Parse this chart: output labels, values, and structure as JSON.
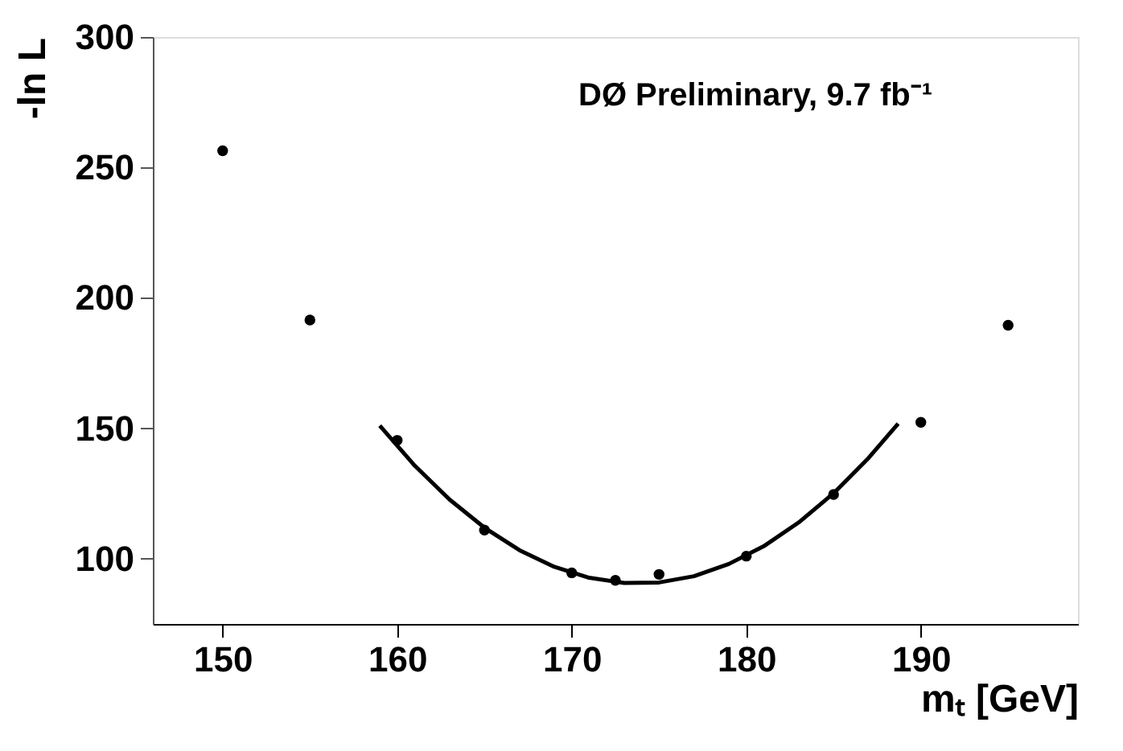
{
  "chart_data": {
    "type": "scatter",
    "xlabel": "mₜ [GeV]",
    "ylabel": "-ln L",
    "annotations": [
      "DØ Preliminary, 9.7 fb⁻¹"
    ],
    "xlim": [
      146,
      199
    ],
    "xticks": [
      150,
      160,
      170,
      180,
      190
    ],
    "ylim": [
      75,
      300
    ],
    "yticks": [
      100,
      150,
      200,
      250,
      300
    ],
    "grid": false,
    "series": [
      {
        "marker": "circle",
        "color": "#000000",
        "x": [
          150,
          155,
          160,
          165,
          170,
          172.5,
          175,
          180,
          185,
          190,
          195
        ],
        "values": [
          256.4,
          191.5,
          145.4,
          111,
          94.6,
          91.7,
          94,
          101,
          124.6,
          152.3,
          189.5
        ]
      },
      {
        "type": "line",
        "marker": "none",
        "color": "#000000",
        "line_style": "solid",
        "x": [
          159,
          161,
          163,
          165,
          167,
          169,
          171,
          173,
          175,
          177,
          179,
          181,
          183,
          185,
          187,
          188.7
        ],
        "values": [
          151,
          135.7,
          122.7,
          111.9,
          103.3,
          96.9,
          92.7,
          90.7,
          90.9,
          93.3,
          98,
          104.8,
          113.9,
          125.1,
          138.6,
          151.8
        ]
      }
    ]
  }
}
